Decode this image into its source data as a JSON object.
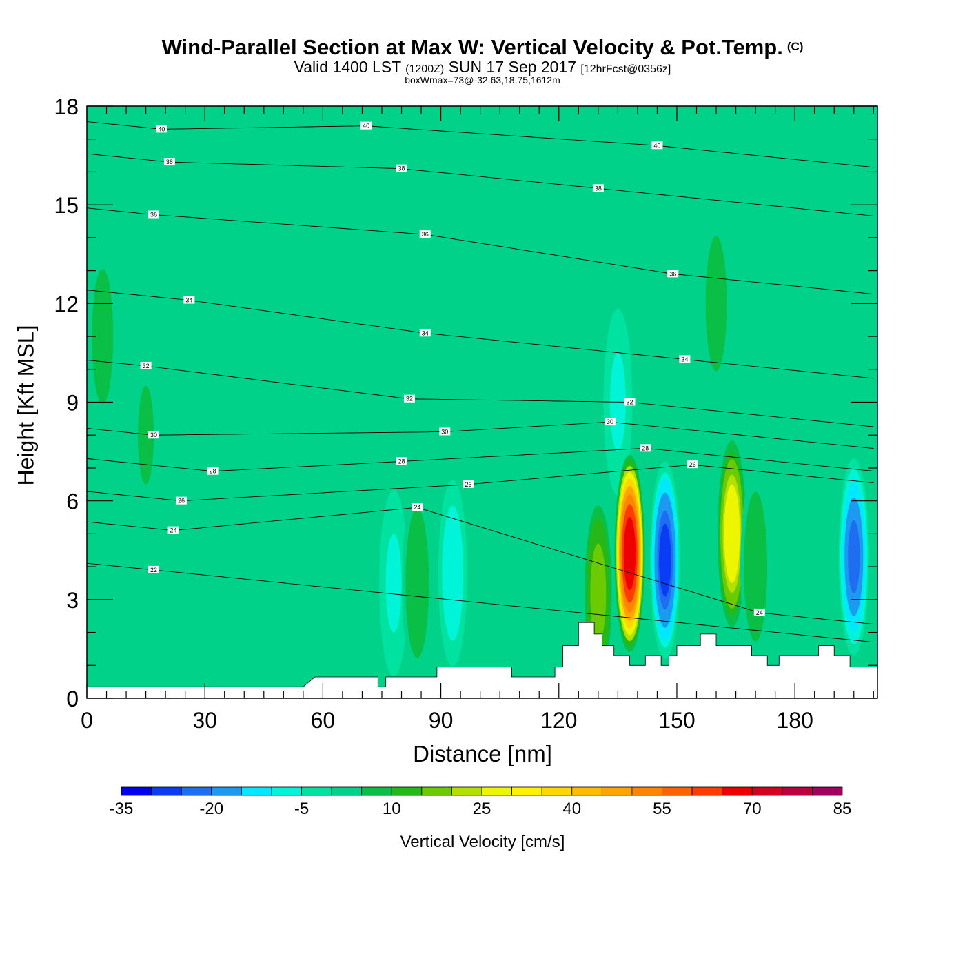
{
  "title": {
    "main": "Wind-Parallel Section at Max W: Vertical Velocity & Pot.Temp.",
    "copyright": "(C)",
    "valid_prefix": "Valid 1400 LST",
    "utc": "(1200Z)",
    "valid_date": "SUN 17 Sep 2017",
    "fcst": "[12hrFcst@0356z]",
    "box": "boxWmax=73@-32.63,18.75,1612m"
  },
  "chart_data": {
    "type": "heatmap",
    "xlabel": "Distance [nm]",
    "ylabel": "Height [Kft MSL]",
    "xlim": [
      0,
      201
    ],
    "ylim": [
      0,
      18
    ],
    "xticks": [
      0,
      30,
      60,
      90,
      120,
      150,
      180
    ],
    "yticks": [
      0,
      3,
      6,
      9,
      12,
      15,
      18
    ],
    "colorbar": {
      "label": "Vertical Velocity [cm/s]",
      "levels": [
        -35,
        -30,
        -25,
        -20,
        -15,
        -10,
        -5,
        0,
        5,
        10,
        15,
        20,
        25,
        30,
        35,
        40,
        45,
        50,
        55,
        60,
        65,
        70,
        75,
        80,
        85
      ],
      "tick_labels": [
        "-35",
        "-20",
        "-5",
        "10",
        "25",
        "40",
        "55",
        "70",
        "85"
      ],
      "colors": [
        "#0000ee",
        "#0a3cf5",
        "#1f6ef2",
        "#1e99f0",
        "#00e8ff",
        "#00f5d8",
        "#00e3a0",
        "#00d28a",
        "#0abf45",
        "#26b818",
        "#6ccb00",
        "#b4e000",
        "#eef500",
        "#fff200",
        "#ffd700",
        "#ffbd00",
        "#ffa500",
        "#ff8400",
        "#ff6200",
        "#ff3c00",
        "#ee0000",
        "#d40020",
        "#bb0040",
        "#a00060"
      ]
    },
    "background_w": 1,
    "updrafts": [
      {
        "x": 138,
        "z": 4.4,
        "peak": 73
      },
      {
        "x": 164,
        "z": 5.0,
        "peak": 30
      },
      {
        "x": 130,
        "z": 3.2,
        "peak": 20
      },
      {
        "x": 84,
        "z": 3.5,
        "peak": 10
      },
      {
        "x": 170,
        "z": 4.0,
        "peak": 10
      },
      {
        "x": 4,
        "z": 11.0,
        "peak": 8
      },
      {
        "x": 160,
        "z": 12.0,
        "peak": 8
      },
      {
        "x": 15,
        "z": 8.0,
        "peak": 6
      }
    ],
    "downdrafts": [
      {
        "x": 147,
        "z": 4.2,
        "peak": -28
      },
      {
        "x": 195,
        "z": 4.3,
        "peak": -22
      },
      {
        "x": 93,
        "z": 3.8,
        "peak": -9
      },
      {
        "x": 78,
        "z": 3.5,
        "peak": -7
      },
      {
        "x": 135,
        "z": 9.0,
        "peak": -7
      }
    ],
    "theta_labels": [
      {
        "x": 19,
        "z": 17.3,
        "text": "40"
      },
      {
        "x": 71,
        "z": 17.4,
        "text": "40"
      },
      {
        "x": 145,
        "z": 16.8,
        "text": "40"
      },
      {
        "x": 21,
        "z": 16.3,
        "text": "38"
      },
      {
        "x": 80,
        "z": 16.1,
        "text": "38"
      },
      {
        "x": 130,
        "z": 15.5,
        "text": "38"
      },
      {
        "x": 17,
        "z": 14.7,
        "text": "36"
      },
      {
        "x": 86,
        "z": 14.1,
        "text": "36"
      },
      {
        "x": 149,
        "z": 12.9,
        "text": "36"
      },
      {
        "x": 26,
        "z": 12.1,
        "text": "34"
      },
      {
        "x": 86,
        "z": 11.1,
        "text": "34"
      },
      {
        "x": 152,
        "z": 10.3,
        "text": "34"
      },
      {
        "x": 15,
        "z": 10.1,
        "text": "32"
      },
      {
        "x": 82,
        "z": 9.1,
        "text": "32"
      },
      {
        "x": 138,
        "z": 9.0,
        "text": "32"
      },
      {
        "x": 17,
        "z": 8.0,
        "text": "30"
      },
      {
        "x": 91,
        "z": 8.1,
        "text": "30"
      },
      {
        "x": 133,
        "z": 8.4,
        "text": "30"
      },
      {
        "x": 32,
        "z": 6.9,
        "text": "28"
      },
      {
        "x": 80,
        "z": 7.2,
        "text": "28"
      },
      {
        "x": 142,
        "z": 7.6,
        "text": "28"
      },
      {
        "x": 24,
        "z": 6.0,
        "text": "26"
      },
      {
        "x": 97,
        "z": 6.5,
        "text": "26"
      },
      {
        "x": 154,
        "z": 7.1,
        "text": "26"
      },
      {
        "x": 22,
        "z": 5.1,
        "text": "24"
      },
      {
        "x": 84,
        "z": 5.8,
        "text": "24"
      },
      {
        "x": 171,
        "z": 2.6,
        "text": "24"
      },
      {
        "x": 17,
        "z": 3.9,
        "text": "22"
      }
    ],
    "terrain": [
      [
        0,
        0.35
      ],
      [
        55,
        0.35
      ],
      [
        58,
        0.65
      ],
      [
        74,
        0.65
      ],
      [
        74,
        0.35
      ],
      [
        76,
        0.35
      ],
      [
        76,
        0.65
      ],
      [
        89,
        0.65
      ],
      [
        89,
        0.95
      ],
      [
        108,
        0.95
      ],
      [
        108,
        0.65
      ],
      [
        119,
        0.65
      ],
      [
        119,
        0.95
      ],
      [
        121,
        0.95
      ],
      [
        121,
        1.6
      ],
      [
        125,
        1.6
      ],
      [
        125,
        2.3
      ],
      [
        129,
        2.3
      ],
      [
        129,
        1.95
      ],
      [
        131,
        1.95
      ],
      [
        131,
        1.6
      ],
      [
        134,
        1.6
      ],
      [
        134,
        1.3
      ],
      [
        138,
        1.3
      ],
      [
        138,
        1.0
      ],
      [
        142,
        1.0
      ],
      [
        142,
        1.3
      ],
      [
        146,
        1.3
      ],
      [
        146,
        1.0
      ],
      [
        148,
        1.0
      ],
      [
        148,
        1.3
      ],
      [
        150,
        1.3
      ],
      [
        150,
        1.6
      ],
      [
        156,
        1.6
      ],
      [
        156,
        1.95
      ],
      [
        160,
        1.95
      ],
      [
        160,
        1.6
      ],
      [
        169,
        1.6
      ],
      [
        169,
        1.3
      ],
      [
        173,
        1.3
      ],
      [
        173,
        1.0
      ],
      [
        176,
        1.0
      ],
      [
        176,
        1.3
      ],
      [
        186,
        1.3
      ],
      [
        186,
        1.6
      ],
      [
        190,
        1.6
      ],
      [
        190,
        1.3
      ],
      [
        194,
        1.3
      ],
      [
        194,
        0.95
      ],
      [
        201,
        0.95
      ]
    ]
  }
}
